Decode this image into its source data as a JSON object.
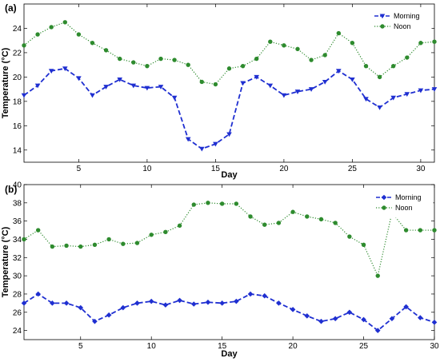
{
  "chart_data": [
    {
      "type": "line",
      "panel_label": "(a)",
      "xlabel": "Day",
      "ylabel": "Temperature (°C)",
      "xlim": [
        1,
        31
      ],
      "ylim": [
        13,
        26
      ],
      "xticks": [
        5,
        10,
        15,
        20,
        25,
        30
      ],
      "yticks": [
        14,
        16,
        18,
        20,
        22,
        24
      ],
      "grid": false,
      "legend_position": "top-right",
      "x": [
        1,
        2,
        3,
        4,
        5,
        6,
        7,
        8,
        9,
        10,
        11,
        12,
        13,
        14,
        15,
        16,
        17,
        18,
        19,
        20,
        21,
        22,
        23,
        24,
        25,
        26,
        27,
        28,
        29,
        30,
        31
      ],
      "series": [
        {
          "name": "Morning",
          "color": "#1f2fd1",
          "line_style": "dashed",
          "marker": "triangle-down",
          "values": [
            18.5,
            19.3,
            20.5,
            20.7,
            19.9,
            18.5,
            19.2,
            19.8,
            19.3,
            19.1,
            19.2,
            18.3,
            14.9,
            14.1,
            14.5,
            15.3,
            19.5,
            20.0,
            19.3,
            18.5,
            18.8,
            19.0,
            19.6,
            20.5,
            19.8,
            18.2,
            17.5,
            18.3,
            18.6,
            18.9,
            19.0
          ]
        },
        {
          "name": "Noon",
          "color": "#2e8b2e",
          "line_style": "dotted",
          "marker": "circle",
          "values": [
            22.6,
            23.5,
            24.1,
            24.5,
            23.5,
            22.8,
            22.2,
            21.5,
            21.2,
            20.9,
            21.5,
            21.4,
            21.0,
            19.6,
            19.4,
            20.7,
            20.9,
            21.5,
            22.9,
            22.6,
            22.3,
            21.4,
            21.8,
            23.6,
            22.8,
            20.9,
            20.0,
            20.9,
            21.6,
            22.8,
            22.9
          ]
        }
      ]
    },
    {
      "type": "line",
      "panel_label": "(b)",
      "xlabel": "Day",
      "ylabel": "Temperature (°C)",
      "xlim": [
        1,
        30
      ],
      "ylim": [
        23,
        40
      ],
      "xticks": [
        5,
        10,
        15,
        20,
        25,
        30
      ],
      "yticks": [
        24,
        26,
        28,
        30,
        32,
        34,
        36,
        38,
        40
      ],
      "grid": false,
      "legend_position": "top-right",
      "x": [
        1,
        2,
        3,
        4,
        5,
        6,
        7,
        8,
        9,
        10,
        11,
        12,
        13,
        14,
        15,
        16,
        17,
        18,
        19,
        20,
        21,
        22,
        23,
        24,
        25,
        26,
        27,
        28,
        29,
        30
      ],
      "series": [
        {
          "name": "Morning",
          "color": "#1f2fd1",
          "line_style": "dashed",
          "marker": "diamond",
          "values": [
            27.0,
            28.0,
            27.0,
            27.0,
            26.5,
            25.0,
            25.7,
            26.5,
            27.0,
            27.2,
            26.8,
            27.3,
            26.9,
            27.1,
            27.0,
            27.2,
            28.0,
            27.8,
            27.0,
            26.3,
            25.6,
            25.0,
            25.3,
            26.0,
            25.2,
            24.0,
            25.3,
            26.6,
            25.4,
            24.9
          ]
        },
        {
          "name": "Noon",
          "color": "#2e8b2e",
          "line_style": "dotted",
          "marker": "circle",
          "values": [
            34.0,
            35.0,
            33.2,
            33.3,
            33.2,
            33.4,
            34.0,
            33.5,
            33.6,
            34.5,
            34.8,
            35.5,
            37.8,
            38.0,
            37.9,
            37.9,
            36.5,
            35.6,
            35.8,
            37.0,
            36.5,
            36.2,
            35.8,
            34.3,
            33.4,
            30.0,
            36.9,
            35.0,
            35.0,
            35.0
          ]
        }
      ]
    }
  ]
}
